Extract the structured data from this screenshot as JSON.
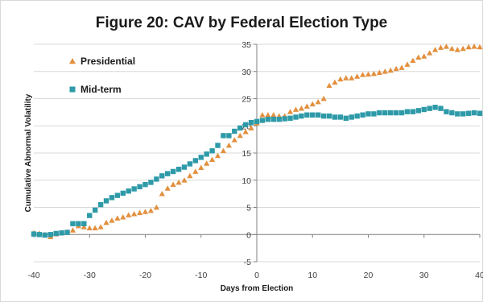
{
  "chart_data": {
    "type": "scatter",
    "title": "Figure 20: CAV by Federal Election Type",
    "xlabel": "Days from Election",
    "ylabel": "Cumulative Abnormal Volatility",
    "xlim": [
      -40,
      40
    ],
    "ylim": [
      -5,
      35
    ],
    "xticks": [
      "-40",
      "-30",
      "-20",
      "-10",
      "0",
      "10",
      "20",
      "30",
      "40"
    ],
    "yticks": [
      "-5",
      "0",
      "5",
      "10",
      "15",
      "20",
      "25",
      "30",
      "35"
    ],
    "grid": "horizontal",
    "legend_position": "top-left",
    "series": [
      {
        "name": "Presidential",
        "marker": "triangle",
        "color": "#e2903f",
        "x": [
          -40,
          -39,
          -38,
          -37,
          -36,
          -35,
          -34,
          -33,
          -32,
          -31,
          -30,
          -29,
          -28,
          -27,
          -26,
          -25,
          -24,
          -23,
          -22,
          -21,
          -20,
          -19,
          -18,
          -17,
          -16,
          -15,
          -14,
          -13,
          -12,
          -11,
          -10,
          -9,
          -8,
          -7,
          -6,
          -5,
          -4,
          -3,
          -2,
          -1,
          0,
          1,
          2,
          3,
          4,
          5,
          6,
          7,
          8,
          9,
          10,
          11,
          12,
          13,
          14,
          15,
          16,
          17,
          18,
          19,
          20,
          21,
          22,
          23,
          24,
          25,
          26,
          27,
          28,
          29,
          30,
          31,
          32,
          33,
          34,
          35,
          36,
          37,
          38,
          39,
          40
        ],
        "y": [
          0.3,
          0.2,
          0.0,
          -0.4,
          0.1,
          0.3,
          0.5,
          0.8,
          1.6,
          1.4,
          1.2,
          1.2,
          1.4,
          2.2,
          2.6,
          3.0,
          3.2,
          3.6,
          3.8,
          4.0,
          4.2,
          4.4,
          5.0,
          7.5,
          8.5,
          9.2,
          9.6,
          10.0,
          10.8,
          11.6,
          12.3,
          13.1,
          13.8,
          14.5,
          15.4,
          16.4,
          17.4,
          18.2,
          18.9,
          19.6,
          20.5,
          22.0,
          22.0,
          22.0,
          21.8,
          21.8,
          22.6,
          23.0,
          23.2,
          23.6,
          24.0,
          24.4,
          25.0,
          27.4,
          28.0,
          28.6,
          28.8,
          28.8,
          29.1,
          29.4,
          29.5,
          29.6,
          29.8,
          30.0,
          30.2,
          30.5,
          30.7,
          31.3,
          32.0,
          32.6,
          32.8,
          33.4,
          34.0,
          34.4,
          34.6,
          34.2,
          34.0,
          34.2,
          34.5,
          34.6,
          34.5
        ]
      },
      {
        "name": "Mid-term",
        "marker": "square",
        "color": "#2e9aa8",
        "x": [
          -40,
          -39,
          -38,
          -37,
          -36,
          -35,
          -34,
          -33,
          -32,
          -31,
          -30,
          -29,
          -28,
          -27,
          -26,
          -25,
          -24,
          -23,
          -22,
          -21,
          -20,
          -19,
          -18,
          -17,
          -16,
          -15,
          -14,
          -13,
          -12,
          -11,
          -10,
          -9,
          -8,
          -7,
          -6,
          -5,
          -4,
          -3,
          -2,
          -1,
          0,
          1,
          2,
          3,
          4,
          5,
          6,
          7,
          8,
          9,
          10,
          11,
          12,
          13,
          14,
          15,
          16,
          17,
          18,
          19,
          20,
          21,
          22,
          23,
          24,
          25,
          26,
          27,
          28,
          29,
          30,
          31,
          32,
          33,
          34,
          35,
          36,
          37,
          38,
          39,
          40
        ],
        "y": [
          0.1,
          0.0,
          -0.1,
          0.0,
          0.2,
          0.3,
          0.4,
          2.0,
          2.0,
          2.0,
          3.5,
          4.5,
          5.5,
          6.2,
          6.8,
          7.2,
          7.6,
          8.0,
          8.4,
          8.8,
          9.2,
          9.6,
          10.2,
          10.8,
          11.2,
          11.6,
          12.0,
          12.4,
          13.0,
          13.6,
          14.2,
          14.8,
          15.4,
          16.4,
          18.2,
          18.2,
          19.0,
          19.6,
          20.2,
          20.6,
          20.8,
          21.0,
          21.2,
          21.2,
          21.2,
          21.3,
          21.4,
          21.6,
          21.8,
          22.0,
          22.0,
          22.0,
          21.8,
          21.8,
          21.6,
          21.6,
          21.4,
          21.6,
          21.8,
          22.0,
          22.2,
          22.2,
          22.4,
          22.4,
          22.4,
          22.4,
          22.4,
          22.6,
          22.6,
          22.8,
          23.0,
          23.2,
          23.4,
          23.2,
          22.6,
          22.4,
          22.2,
          22.2,
          22.3,
          22.4,
          22.3
        ]
      }
    ]
  }
}
